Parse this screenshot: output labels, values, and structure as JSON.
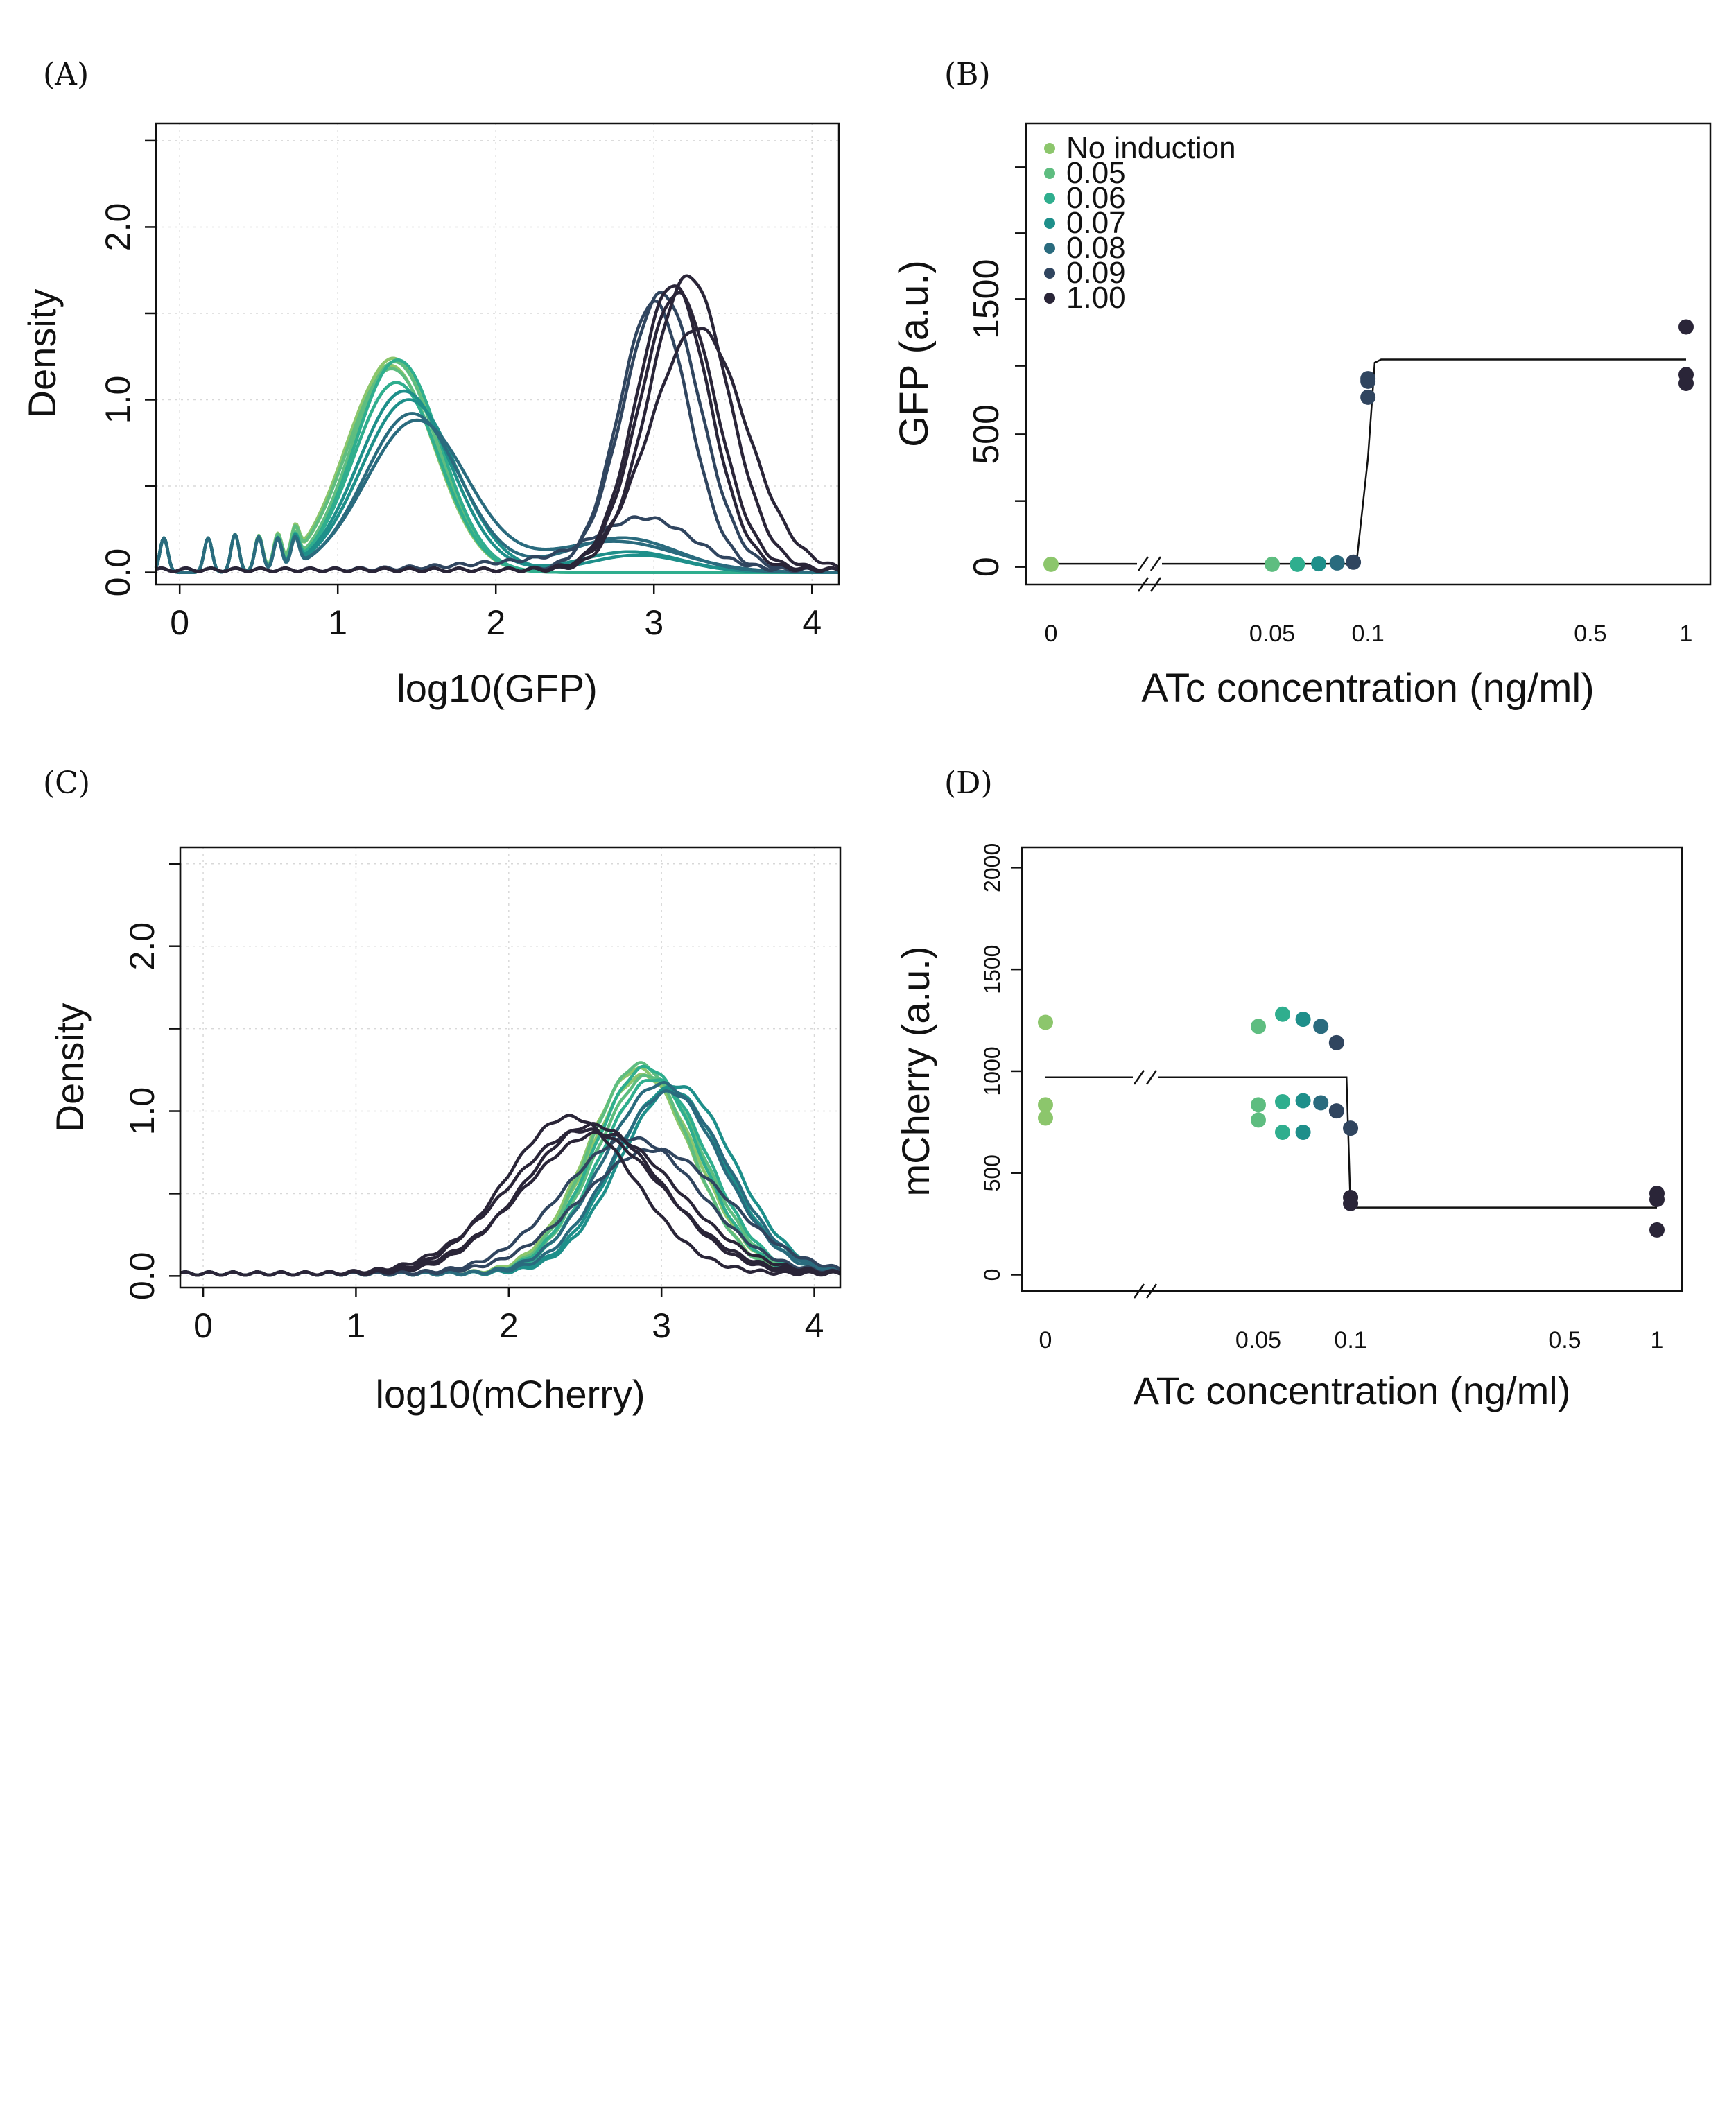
{
  "palette": [
    "#8cc66c",
    "#5ebd80",
    "#2fae8e",
    "#1e8f8a",
    "#2a6b7e",
    "#30455f",
    "#2a2538"
  ],
  "chart_data": [
    {
      "panel": "(A)",
      "type": "line",
      "xlabel": "log10(GFP)",
      "ylabel": "Density",
      "xlim": [
        -0.15,
        4.17
      ],
      "ylim": [
        -0.07,
        2.6
      ],
      "xticks": [
        "0",
        "1",
        "2",
        "3",
        "4"
      ],
      "yticks": [
        "0.0",
        "1.0",
        "2.0"
      ],
      "grid": true,
      "series": [
        {
          "color_index": 0,
          "peaks": [
            [
              1.35,
              0.28,
              1.24
            ]
          ],
          "spikes": true
        },
        {
          "color_index": 0,
          "peaks": [
            [
              1.33,
              0.28,
              1.2
            ]
          ],
          "spikes": true
        },
        {
          "color_index": 1,
          "peaks": [
            [
              1.36,
              0.27,
              1.22
            ]
          ],
          "spikes": true
        },
        {
          "color_index": 1,
          "peaks": [
            [
              1.34,
              0.28,
              1.18
            ]
          ],
          "spikes": true
        },
        {
          "color_index": 2,
          "peaks": [
            [
              1.38,
              0.27,
              1.23
            ]
          ],
          "spikes": true
        },
        {
          "color_index": 2,
          "peaks": [
            [
              1.37,
              0.27,
              1.1
            ]
          ],
          "spikes": true
        },
        {
          "color_index": 3,
          "peaks": [
            [
              1.42,
              0.29,
              1.05
            ],
            [
              2.85,
              0.32,
              0.12
            ]
          ],
          "spikes": true
        },
        {
          "color_index": 3,
          "peaks": [
            [
              1.45,
              0.3,
              1.0
            ],
            [
              2.9,
              0.3,
              0.1
            ]
          ],
          "spikes": true
        },
        {
          "color_index": 4,
          "peaks": [
            [
              1.47,
              0.3,
              0.92
            ],
            [
              2.8,
              0.35,
              0.2
            ]
          ],
          "spikes": true
        },
        {
          "color_index": 4,
          "peaks": [
            [
              1.5,
              0.32,
              0.88
            ],
            [
              2.75,
              0.4,
              0.18
            ]
          ],
          "spikes": true
        },
        {
          "color_index": 5,
          "peaks": [
            [
              2.95,
              0.3,
              0.28
            ],
            [
              2.3,
              0.5,
              0.05
            ]
          ],
          "spikes": false
        },
        {
          "color_index": 5,
          "peaks": [
            [
              3.0,
              0.22,
              1.55
            ]
          ],
          "spikes": false
        },
        {
          "color_index": 5,
          "peaks": [
            [
              3.05,
              0.24,
              1.6
            ]
          ],
          "spikes": false
        },
        {
          "color_index": 6,
          "peaks": [
            [
              3.12,
              0.23,
              1.65
            ]
          ],
          "spikes": false
        },
        {
          "color_index": 6,
          "peaks": [
            [
              3.15,
              0.24,
              1.6
            ]
          ],
          "spikes": false
        },
        {
          "color_index": 6,
          "peaks": [
            [
              3.22,
              0.25,
              1.7
            ]
          ],
          "spikes": false
        },
        {
          "color_index": 6,
          "peaks": [
            [
              3.28,
              0.3,
              1.4
            ]
          ],
          "spikes": false
        }
      ]
    },
    {
      "panel": "(B)",
      "type": "scatter",
      "xlabel": "ATc concentration (ng/ml)",
      "ylabel": "GFP (a.u.)",
      "xticks": [
        "0",
        "0.05",
        "0.1",
        "0.5",
        "1"
      ],
      "yticks": [
        "0",
        "500",
        "1500"
      ],
      "ylim": [
        -40,
        1010
      ],
      "legend_position": "top-left",
      "legend": [
        "No induction",
        "0.05",
        "0.06",
        "0.07",
        "0.08",
        "0.09",
        "1.00"
      ],
      "points": [
        {
          "x": 0,
          "y": 10,
          "color_index": 0
        },
        {
          "x": 0.05,
          "y": 10,
          "color_index": 1
        },
        {
          "x": 0.06,
          "y": 10,
          "color_index": 2
        },
        {
          "x": 0.07,
          "y": 12,
          "color_index": 3
        },
        {
          "x": 0.08,
          "y": 15,
          "color_index": 4
        },
        {
          "x": 0.09,
          "y": 18,
          "color_index": 5
        },
        {
          "x": 0.1,
          "y": 640,
          "color_index": 5
        },
        {
          "x": 0.1,
          "y": 700,
          "color_index": 5
        },
        {
          "x": 0.1,
          "y": 710,
          "color_index": 5
        },
        {
          "x": 1,
          "y": 905,
          "color_index": 6
        },
        {
          "x": 1,
          "y": 725,
          "color_index": 6
        },
        {
          "x": 1,
          "y": 692,
          "color_index": 6
        }
      ],
      "fit": [
        [
          0,
          12
        ],
        [
          0.092,
          12
        ],
        [
          0.1,
          410
        ],
        [
          0.105,
          770
        ],
        [
          0.11,
          782
        ],
        [
          1,
          782
        ]
      ]
    },
    {
      "panel": "(C)",
      "type": "line",
      "xlabel": "log10(mCherry)",
      "ylabel": "Density",
      "xlim": [
        -0.15,
        4.17
      ],
      "ylim": [
        -0.07,
        2.6
      ],
      "xticks": [
        "0",
        "1",
        "2",
        "3",
        "4"
      ],
      "yticks": [
        "0.0",
        "1.0",
        "2.0"
      ],
      "grid": true,
      "series": [
        {
          "color_index": 0,
          "peaks": [
            [
              2.88,
              0.35,
              1.2
            ]
          ]
        },
        {
          "color_index": 0,
          "peaks": [
            [
              2.85,
              0.34,
              1.24
            ]
          ]
        },
        {
          "color_index": 1,
          "peaks": [
            [
              2.92,
              0.35,
              1.2
            ]
          ]
        },
        {
          "color_index": 1,
          "peaks": [
            [
              2.86,
              0.33,
              1.27
            ]
          ]
        },
        {
          "color_index": 2,
          "peaks": [
            [
              2.9,
              0.34,
              1.25
            ]
          ]
        },
        {
          "color_index": 2,
          "peaks": [
            [
              2.95,
              0.35,
              1.18
            ]
          ]
        },
        {
          "color_index": 3,
          "peaks": [
            [
              3.05,
              0.36,
              1.12
            ]
          ]
        },
        {
          "color_index": 3,
          "peaks": [
            [
              3.1,
              0.37,
              1.14
            ]
          ]
        },
        {
          "color_index": 4,
          "peaks": [
            [
              3.0,
              0.38,
              1.15
            ]
          ]
        },
        {
          "color_index": 4,
          "peaks": [
            [
              3.05,
              0.38,
              1.1
            ]
          ]
        },
        {
          "color_index": 5,
          "peaks": [
            [
              2.95,
              0.48,
              0.75
            ]
          ]
        },
        {
          "color_index": 5,
          "peaks": [
            [
              2.8,
              0.45,
              0.82
            ]
          ]
        },
        {
          "color_index": 6,
          "peaks": [
            [
              2.4,
              0.42,
              0.95
            ]
          ]
        },
        {
          "color_index": 6,
          "peaks": [
            [
              2.55,
              0.45,
              0.9
            ]
          ]
        },
        {
          "color_index": 6,
          "peaks": [
            [
              2.6,
              0.5,
              0.85
            ]
          ]
        },
        {
          "color_index": 6,
          "peaks": [
            [
              2.5,
              0.5,
              0.87
            ]
          ]
        }
      ]
    },
    {
      "panel": "(D)",
      "type": "scatter",
      "xlabel": "ATc concentration (ng/ml)",
      "ylabel": "mCherry (a.u.)",
      "xticks": [
        "0",
        "0.05",
        "0.1",
        "0.5",
        "1"
      ],
      "yticks": [
        "0",
        "500",
        "1000",
        "1500",
        "2000"
      ],
      "ylim": [
        -80,
        2100
      ],
      "points": [
        {
          "x": 0,
          "y": 1240,
          "color_index": 0
        },
        {
          "x": 0,
          "y": 835,
          "color_index": 0
        },
        {
          "x": 0,
          "y": 770,
          "color_index": 0
        },
        {
          "x": 0.05,
          "y": 1220,
          "color_index": 1
        },
        {
          "x": 0.05,
          "y": 835,
          "color_index": 1
        },
        {
          "x": 0.05,
          "y": 760,
          "color_index": 1
        },
        {
          "x": 0.06,
          "y": 1280,
          "color_index": 2
        },
        {
          "x": 0.06,
          "y": 850,
          "color_index": 2
        },
        {
          "x": 0.06,
          "y": 700,
          "color_index": 2
        },
        {
          "x": 0.07,
          "y": 1255,
          "color_index": 3
        },
        {
          "x": 0.07,
          "y": 855,
          "color_index": 3
        },
        {
          "x": 0.07,
          "y": 700,
          "color_index": 3
        },
        {
          "x": 0.08,
          "y": 1220,
          "color_index": 4
        },
        {
          "x": 0.08,
          "y": 845,
          "color_index": 4
        },
        {
          "x": 0.09,
          "y": 1140,
          "color_index": 5
        },
        {
          "x": 0.09,
          "y": 805,
          "color_index": 5
        },
        {
          "x": 0.1,
          "y": 720,
          "color_index": 5
        },
        {
          "x": 0.1,
          "y": 380,
          "color_index": 6
        },
        {
          "x": 0.1,
          "y": 350,
          "color_index": 6
        },
        {
          "x": 1,
          "y": 400,
          "color_index": 6
        },
        {
          "x": 1,
          "y": 370,
          "color_index": 6
        },
        {
          "x": 1,
          "y": 220,
          "color_index": 6
        }
      ],
      "fit": [
        [
          0,
          970
        ],
        [
          0.097,
          970
        ],
        [
          0.1,
          330
        ],
        [
          1,
          330
        ]
      ]
    }
  ]
}
